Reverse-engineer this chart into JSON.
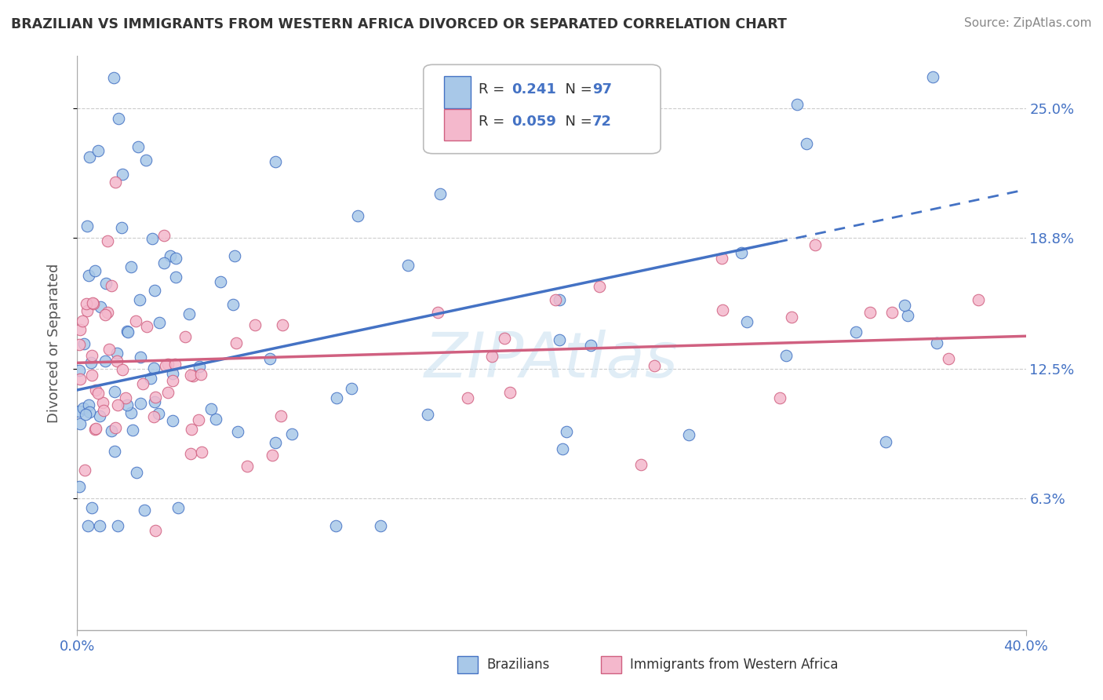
{
  "title": "BRAZILIAN VS IMMIGRANTS FROM WESTERN AFRICA DIVORCED OR SEPARATED CORRELATION CHART",
  "source": "Source: ZipAtlas.com",
  "ylabel": "Divorced or Separated",
  "xlim": [
    0.0,
    0.4
  ],
  "ylim": [
    0.0,
    0.275
  ],
  "yticks": [
    0.063,
    0.125,
    0.188,
    0.25
  ],
  "ytick_labels": [
    "6.3%",
    "12.5%",
    "18.8%",
    "25.0%"
  ],
  "xtick_labels": [
    "0.0%",
    "40.0%"
  ],
  "xticks": [
    0.0,
    0.4
  ],
  "blue_color": "#a8c8e8",
  "blue_edge": "#4472c4",
  "pink_color": "#f4b8cc",
  "pink_edge": "#d06080",
  "line_blue": "#4472c4",
  "line_pink": "#d06080",
  "legend_color": "#4472c4",
  "background_color": "#ffffff",
  "grid_color": "#cccccc",
  "title_color": "#333333",
  "source_color": "#888888",
  "axis_label_color": "#4472c4",
  "ylabel_color": "#555555"
}
